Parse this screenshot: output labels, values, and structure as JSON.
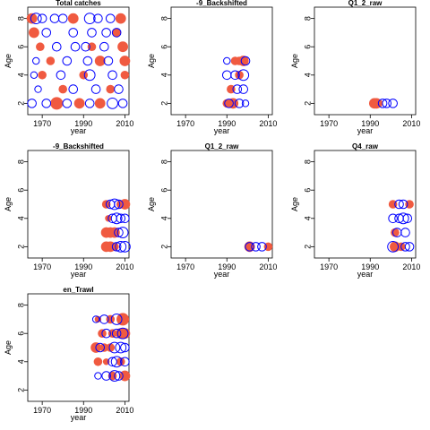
{
  "chart_data": [
    {
      "type": "scatter",
      "title": "Total catches",
      "xlabel": "year",
      "ylabel": "Age",
      "xlim": [
        1963,
        2012
      ],
      "ylim": [
        1.2,
        8.8
      ],
      "xticks": [
        1970,
        1990,
        2010
      ],
      "yticks": [
        2,
        4,
        6,
        8
      ],
      "colors": {
        "positive": "#f05a40",
        "negative": "#0000ff"
      },
      "series": [
        {
          "style": "filled",
          "points": [
            {
              "x": 1965,
              "y": 8,
              "s": 4
            },
            {
              "x": 1966,
              "y": 7,
              "s": 4
            },
            {
              "x": 1969,
              "y": 6,
              "s": 3
            },
            {
              "x": 1974,
              "y": 5,
              "s": 3
            },
            {
              "x": 1985,
              "y": 8,
              "s": 4
            },
            {
              "x": 1988,
              "y": 2,
              "s": 4
            },
            {
              "x": 1990,
              "y": 4,
              "s": 3
            },
            {
              "x": 1994,
              "y": 6,
              "s": 3
            },
            {
              "x": 1998,
              "y": 5,
              "s": 4
            },
            {
              "x": 2003,
              "y": 3,
              "s": 3
            },
            {
              "x": 2006,
              "y": 7,
              "s": 3
            },
            {
              "x": 2008,
              "y": 8,
              "s": 4
            },
            {
              "x": 2009,
              "y": 6,
              "s": 4
            },
            {
              "x": 2010,
              "y": 5,
              "s": 4
            },
            {
              "x": 2010,
              "y": 4,
              "s": 3
            },
            {
              "x": 1977,
              "y": 2,
              "s": 5
            },
            {
              "x": 1980,
              "y": 3,
              "s": 3
            },
            {
              "x": 1970,
              "y": 4,
              "s": 3
            },
            {
              "x": 1998,
              "y": 2,
              "s": 4
            }
          ]
        },
        {
          "style": "open",
          "points": [
            {
              "x": 1967,
              "y": 8,
              "s": 4
            },
            {
              "x": 1970,
              "y": 8,
              "s": 3
            },
            {
              "x": 1972,
              "y": 7,
              "s": 3
            },
            {
              "x": 1976,
              "y": 8,
              "s": 3
            },
            {
              "x": 1980,
              "y": 8,
              "s": 3
            },
            {
              "x": 1993,
              "y": 8,
              "s": 4
            },
            {
              "x": 1997,
              "y": 8,
              "s": 3
            },
            {
              "x": 2003,
              "y": 8,
              "s": 3
            },
            {
              "x": 2006,
              "y": 7,
              "s": 3
            },
            {
              "x": 2001,
              "y": 7,
              "s": 3
            },
            {
              "x": 1994,
              "y": 7,
              "s": 3
            },
            {
              "x": 1985,
              "y": 7,
              "s": 3
            },
            {
              "x": 1977,
              "y": 6,
              "s": 3
            },
            {
              "x": 1986,
              "y": 6,
              "s": 3
            },
            {
              "x": 1991,
              "y": 6,
              "s": 3
            },
            {
              "x": 2000,
              "y": 6,
              "s": 3
            },
            {
              "x": 1967,
              "y": 5,
              "s": 2
            },
            {
              "x": 1982,
              "y": 5,
              "s": 3
            },
            {
              "x": 1992,
              "y": 5,
              "s": 3
            },
            {
              "x": 2002,
              "y": 5,
              "s": 3
            },
            {
              "x": 1966,
              "y": 4,
              "s": 2
            },
            {
              "x": 1979,
              "y": 4,
              "s": 3
            },
            {
              "x": 1993,
              "y": 4,
              "s": 4
            },
            {
              "x": 2004,
              "y": 4,
              "s": 3
            },
            {
              "x": 1968,
              "y": 3,
              "s": 2
            },
            {
              "x": 1985,
              "y": 3,
              "s": 3
            },
            {
              "x": 1996,
              "y": 3,
              "s": 3
            },
            {
              "x": 2007,
              "y": 3,
              "s": 3
            },
            {
              "x": 1965,
              "y": 2,
              "s": 3
            },
            {
              "x": 1972,
              "y": 2,
              "s": 3
            },
            {
              "x": 1982,
              "y": 2,
              "s": 3
            },
            {
              "x": 1993,
              "y": 2,
              "s": 3
            },
            {
              "x": 2004,
              "y": 2,
              "s": 4
            },
            {
              "x": 2009,
              "y": 2,
              "s": 3
            }
          ]
        }
      ]
    },
    {
      "type": "scatter",
      "title": "-9_Backshifted",
      "xlabel": "year",
      "ylabel": "Age",
      "xlim": [
        1963,
        2012
      ],
      "ylim": [
        1.2,
        8.8
      ],
      "xticks": [
        1970,
        1990,
        2010
      ],
      "yticks": [
        2,
        4,
        6,
        8
      ],
      "series": [
        {
          "style": "filled",
          "points": [
            {
              "x": 1994,
              "y": 5,
              "s": 3
            },
            {
              "x": 1996,
              "y": 5,
              "s": 3
            },
            {
              "x": 1998,
              "y": 5,
              "s": 4
            },
            {
              "x": 1996,
              "y": 4,
              "s": 3
            },
            {
              "x": 1992,
              "y": 3,
              "s": 3
            },
            {
              "x": 1990,
              "y": 2,
              "s": 3
            },
            {
              "x": 1993,
              "y": 2,
              "s": 4
            }
          ]
        },
        {
          "style": "open",
          "points": [
            {
              "x": 1990,
              "y": 5,
              "s": 2
            },
            {
              "x": 1999,
              "y": 5,
              "s": 3
            },
            {
              "x": 1990,
              "y": 4,
              "s": 3
            },
            {
              "x": 1994,
              "y": 4,
              "s": 3
            },
            {
              "x": 1998,
              "y": 4,
              "s": 4
            },
            {
              "x": 1995,
              "y": 3,
              "s": 3
            },
            {
              "x": 1998,
              "y": 3,
              "s": 3
            },
            {
              "x": 1991,
              "y": 2,
              "s": 3
            },
            {
              "x": 1996,
              "y": 2,
              "s": 3
            },
            {
              "x": 1999,
              "y": 2,
              "s": 2
            }
          ]
        }
      ]
    },
    {
      "type": "scatter",
      "title": "Q1_2_raw",
      "xlabel": "year",
      "ylabel": "Age",
      "xlim": [
        1963,
        2012
      ],
      "ylim": [
        1.2,
        8.8
      ],
      "xticks": [
        1970,
        1990,
        2010
      ],
      "yticks": [
        2,
        4,
        6,
        8
      ],
      "series": [
        {
          "style": "filled",
          "points": [
            {
              "x": 1992,
              "y": 2,
              "s": 4
            },
            {
              "x": 1993,
              "y": 2,
              "s": 4
            },
            {
              "x": 1994,
              "y": 2,
              "s": 3
            }
          ]
        },
        {
          "style": "open",
          "points": [
            {
              "x": 1996,
              "y": 2,
              "s": 3
            },
            {
              "x": 1998,
              "y": 2,
              "s": 3
            },
            {
              "x": 2001,
              "y": 2,
              "s": 3
            }
          ]
        }
      ]
    },
    {
      "type": "scatter",
      "title": "-9_Backshifted",
      "xlabel": "year",
      "ylabel": "Age",
      "xlim": [
        1963,
        2012
      ],
      "ylim": [
        1.2,
        8.8
      ],
      "xticks": [
        1970,
        1990,
        2010
      ],
      "yticks": [
        2,
        4,
        6,
        8
      ],
      "series": [
        {
          "style": "filled",
          "points": [
            {
              "x": 2001,
              "y": 5,
              "s": 3
            },
            {
              "x": 2008,
              "y": 5,
              "s": 3
            },
            {
              "x": 2010,
              "y": 5,
              "s": 4
            },
            {
              "x": 2002,
              "y": 4,
              "s": 2
            },
            {
              "x": 2001,
              "y": 3,
              "s": 4
            },
            {
              "x": 2003,
              "y": 3,
              "s": 4
            },
            {
              "x": 2005,
              "y": 3,
              "s": 4
            },
            {
              "x": 2001,
              "y": 2,
              "s": 4
            },
            {
              "x": 2003,
              "y": 2,
              "s": 4
            },
            {
              "x": 2005,
              "y": 2,
              "s": 3
            }
          ]
        },
        {
          "style": "open",
          "points": [
            {
              "x": 2003,
              "y": 5,
              "s": 3
            },
            {
              "x": 2005,
              "y": 5,
              "s": 4
            },
            {
              "x": 2007,
              "y": 5,
              "s": 3
            },
            {
              "x": 2004,
              "y": 4,
              "s": 3
            },
            {
              "x": 2006,
              "y": 4,
              "s": 4
            },
            {
              "x": 2008,
              "y": 4,
              "s": 3
            },
            {
              "x": 2010,
              "y": 4,
              "s": 3
            },
            {
              "x": 2007,
              "y": 3,
              "s": 3
            },
            {
              "x": 2009,
              "y": 3,
              "s": 4
            },
            {
              "x": 2006,
              "y": 2,
              "s": 3
            },
            {
              "x": 2008,
              "y": 2,
              "s": 4
            },
            {
              "x": 2010,
              "y": 2,
              "s": 4
            }
          ]
        }
      ]
    },
    {
      "type": "scatter",
      "title": "Q1_2_raw",
      "xlabel": "year",
      "ylabel": "Age",
      "xlim": [
        1963,
        2012
      ],
      "ylim": [
        1.2,
        8.8
      ],
      "xticks": [
        1970,
        1990,
        2010
      ],
      "yticks": [
        2,
        4,
        6,
        8
      ],
      "series": [
        {
          "style": "filled",
          "points": [
            {
              "x": 2001,
              "y": 2,
              "s": 4
            },
            {
              "x": 2010,
              "y": 2,
              "s": 3
            }
          ]
        },
        {
          "style": "open",
          "points": [
            {
              "x": 2001,
              "y": 2,
              "s": 3
            },
            {
              "x": 2004,
              "y": 2,
              "s": 3
            },
            {
              "x": 2007,
              "y": 2,
              "s": 3
            }
          ]
        }
      ]
    },
    {
      "type": "scatter",
      "title": "Q4_raw",
      "xlabel": "year",
      "ylabel": "Age",
      "xlim": [
        1963,
        2012
      ],
      "ylim": [
        1.2,
        8.8
      ],
      "xticks": [
        1970,
        1990,
        2010
      ],
      "yticks": [
        2,
        4,
        6,
        8
      ],
      "series": [
        {
          "style": "filled",
          "points": [
            {
              "x": 2001,
              "y": 5,
              "s": 3
            },
            {
              "x": 2009,
              "y": 5,
              "s": 3
            },
            {
              "x": 2002,
              "y": 3,
              "s": 3
            },
            {
              "x": 2002,
              "y": 2,
              "s": 4
            },
            {
              "x": 2005,
              "y": 2,
              "s": 3
            }
          ]
        },
        {
          "style": "open",
          "points": [
            {
              "x": 2004,
              "y": 5,
              "s": 3
            },
            {
              "x": 2006,
              "y": 5,
              "s": 3
            },
            {
              "x": 2001,
              "y": 4,
              "s": 3
            },
            {
              "x": 2004,
              "y": 4,
              "s": 3
            },
            {
              "x": 2006,
              "y": 4,
              "s": 4
            },
            {
              "x": 2008,
              "y": 4,
              "s": 3
            },
            {
              "x": 2003,
              "y": 3,
              "s": 3
            },
            {
              "x": 2007,
              "y": 3,
              "s": 3
            },
            {
              "x": 2001,
              "y": 2,
              "s": 4
            },
            {
              "x": 2007,
              "y": 2,
              "s": 3
            },
            {
              "x": 2009,
              "y": 2,
              "s": 3
            }
          ]
        }
      ]
    },
    {
      "type": "scatter",
      "title": "en_Trawl",
      "xlabel": "year",
      "ylabel": "Age",
      "xlim": [
        1963,
        2012
      ],
      "ylim": [
        1.2,
        8.8
      ],
      "xticks": [
        1970,
        1990,
        2010
      ],
      "yticks": [
        2,
        4,
        6,
        8
      ],
      "series": [
        {
          "style": "filled",
          "points": [
            {
              "x": 1997,
              "y": 7,
              "s": 2
            },
            {
              "x": 2003,
              "y": 7,
              "s": 3
            },
            {
              "x": 2009,
              "y": 7,
              "s": 5
            },
            {
              "x": 1999,
              "y": 6,
              "s": 3
            },
            {
              "x": 2004,
              "y": 6,
              "s": 3
            },
            {
              "x": 2008,
              "y": 6,
              "s": 4
            },
            {
              "x": 2010,
              "y": 6,
              "s": 4
            },
            {
              "x": 1996,
              "y": 5,
              "s": 4
            },
            {
              "x": 2000,
              "y": 5,
              "s": 3
            },
            {
              "x": 2003,
              "y": 5,
              "s": 3
            },
            {
              "x": 1997,
              "y": 4,
              "s": 3
            },
            {
              "x": 2001,
              "y": 4,
              "s": 2
            },
            {
              "x": 2008,
              "y": 4,
              "s": 3
            },
            {
              "x": 2004,
              "y": 3,
              "s": 3
            },
            {
              "x": 2010,
              "y": 3,
              "s": 4
            }
          ]
        },
        {
          "style": "open",
          "points": [
            {
              "x": 1996,
              "y": 7,
              "s": 2
            },
            {
              "x": 2000,
              "y": 7,
              "s": 3
            },
            {
              "x": 2006,
              "y": 7,
              "s": 4
            },
            {
              "x": 2001,
              "y": 6,
              "s": 3
            },
            {
              "x": 2006,
              "y": 6,
              "s": 3
            },
            {
              "x": 2009,
              "y": 6,
              "s": 4
            },
            {
              "x": 1998,
              "y": 5,
              "s": 3
            },
            {
              "x": 2005,
              "y": 5,
              "s": 4
            },
            {
              "x": 2008,
              "y": 5,
              "s": 4
            },
            {
              "x": 2010,
              "y": 5,
              "s": 3
            },
            {
              "x": 2004,
              "y": 4,
              "s": 3
            },
            {
              "x": 2006,
              "y": 4,
              "s": 4
            },
            {
              "x": 2010,
              "y": 4,
              "s": 3
            },
            {
              "x": 1997,
              "y": 3,
              "s": 2
            },
            {
              "x": 2001,
              "y": 3,
              "s": 3
            },
            {
              "x": 2005,
              "y": 3,
              "s": 4
            },
            {
              "x": 2007,
              "y": 3,
              "s": 3
            }
          ]
        }
      ]
    }
  ]
}
